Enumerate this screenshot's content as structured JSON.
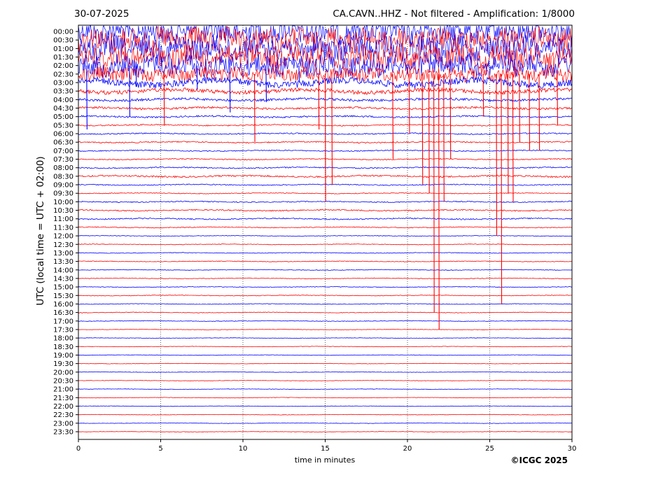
{
  "header": {
    "date": "30-07-2025",
    "title": "CA.CAVN..HHZ - Not filtered - Amplification: 1/8000"
  },
  "copyright": "©ICGC 2025",
  "colors": {
    "red_trace": "#ff0000",
    "blue_trace": "#0000ff",
    "axis": "#000000"
  },
  "chart_data": {
    "type": "line",
    "subtype": "helicorder-seismogram",
    "xlabel": "time in minutes",
    "ylabel": "UTC (local time = UTC + 02:00)",
    "xlim": [
      0,
      30
    ],
    "x_ticks": [
      0,
      5,
      10,
      15,
      20,
      25,
      30
    ],
    "gridlines": "vertical dotted at every 5 minutes",
    "row_labels": [
      "00:00",
      "00:30",
      "01:00",
      "01:30",
      "02:00",
      "02:30",
      "03:00",
      "03:30",
      "04:00",
      "04:30",
      "05:00",
      "05:30",
      "06:00",
      "06:30",
      "07:00",
      "07:30",
      "08:00",
      "08:30",
      "09:00",
      "09:30",
      "10:00",
      "10:30",
      "11:00",
      "11:30",
      "12:00",
      "12:30",
      "13:00",
      "13:30",
      "14:00",
      "14:30",
      "15:00",
      "15:30",
      "16:00",
      "16:30",
      "17:00",
      "17:30",
      "18:00",
      "18:30",
      "19:00",
      "19:30",
      "20:00",
      "20:30",
      "21:00",
      "21:30",
      "22:00",
      "22:30",
      "23:00",
      "23:30"
    ],
    "row_colors": [
      "blue",
      "red",
      "blue",
      "red",
      "blue",
      "red",
      "blue",
      "red",
      "blue",
      "red",
      "blue",
      "red",
      "blue",
      "red",
      "blue",
      "red",
      "blue",
      "red",
      "blue",
      "red",
      "blue",
      "red",
      "blue",
      "red",
      "blue",
      "red",
      "blue",
      "red",
      "blue",
      "red",
      "blue",
      "red",
      "blue",
      "red",
      "blue",
      "red",
      "blue",
      "red",
      "blue",
      "red",
      "blue",
      "red",
      "blue",
      "red",
      "blue",
      "red",
      "blue",
      "red"
    ],
    "noise_levels": [
      1.0,
      1.0,
      1.0,
      0.95,
      0.9,
      0.6,
      0.35,
      0.2,
      0.12,
      0.1,
      0.08,
      0.06,
      0.06,
      0.06,
      0.05,
      0.05,
      0.06,
      0.08,
      0.05,
      0.04,
      0.05,
      0.06,
      0.06,
      0.04,
      0.03,
      0.03,
      0.03,
      0.03,
      0.03,
      0.03,
      0.03,
      0.03,
      0.03,
      0.03,
      0.03,
      0.02,
      0.02,
      0.02,
      0.02,
      0.02,
      0.02,
      0.02,
      0.02,
      0.02,
      0.02,
      0.02,
      0.02,
      0.02
    ],
    "spikes": [
      {
        "row": 4,
        "minute": 0.5,
        "amplitude": -7.5
      },
      {
        "row": 4,
        "minute": 3.1,
        "amplitude": -6.0
      },
      {
        "row": 4,
        "minute": 7.2,
        "amplitude": -2.8
      },
      {
        "row": 4,
        "minute": 9.2,
        "amplitude": -5.5
      },
      {
        "row": 4,
        "minute": 11.4,
        "amplitude": -4.3
      },
      {
        "row": 4,
        "minute": 13.4,
        "amplitude": -2.0
      },
      {
        "row": 4,
        "minute": 3.5,
        "amplitude": -2.5
      },
      {
        "row": 5,
        "minute": 5.2,
        "amplitude": -6.0
      },
      {
        "row": 5,
        "minute": 10.7,
        "amplitude": -8.0
      },
      {
        "row": 5,
        "minute": 14.6,
        "amplitude": -6.5
      },
      {
        "row": 5,
        "minute": 15.0,
        "amplitude": -15.0
      },
      {
        "row": 5,
        "minute": 15.4,
        "amplitude": -13.0
      },
      {
        "row": 5,
        "minute": 19.1,
        "amplitude": -10.0
      },
      {
        "row": 5,
        "minute": 20.1,
        "amplitude": -7.0
      },
      {
        "row": 5,
        "minute": 20.9,
        "amplitude": -13.0
      },
      {
        "row": 5,
        "minute": 21.3,
        "amplitude": -14.0
      },
      {
        "row": 5,
        "minute": 21.6,
        "amplitude": -28.0
      },
      {
        "row": 5,
        "minute": 21.9,
        "amplitude": -30.0
      },
      {
        "row": 5,
        "minute": 22.2,
        "amplitude": -15.0
      },
      {
        "row": 5,
        "minute": 22.6,
        "amplitude": -10.0
      },
      {
        "row": 5,
        "minute": 24.6,
        "amplitude": -5.0
      },
      {
        "row": 5,
        "minute": 25.4,
        "amplitude": -19.0
      },
      {
        "row": 5,
        "minute": 25.7,
        "amplitude": -27.0
      },
      {
        "row": 5,
        "minute": 26.1,
        "amplitude": -14.0
      },
      {
        "row": 5,
        "minute": 26.4,
        "amplitude": -15.0
      },
      {
        "row": 5,
        "minute": 26.8,
        "amplitude": -8.0
      },
      {
        "row": 5,
        "minute": 27.4,
        "amplitude": -9.0
      },
      {
        "row": 5,
        "minute": 28.0,
        "amplitude": -9.0
      },
      {
        "row": 5,
        "minute": 29.1,
        "amplitude": -6.0
      }
    ]
  }
}
